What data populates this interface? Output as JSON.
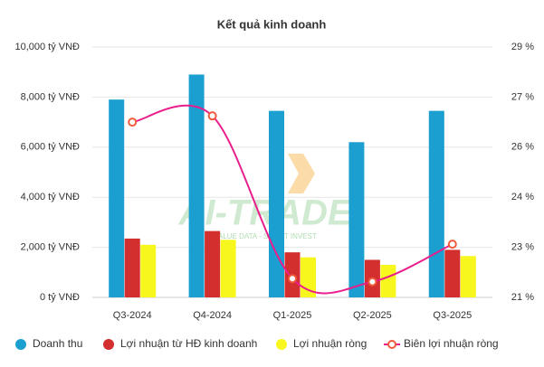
{
  "chart_data": {
    "type": "bar-line",
    "title": "Kết quả kinh doanh",
    "categories": [
      "Q3-2024",
      "Q4-2024",
      "Q1-2025",
      "Q2-2025",
      "Q3-2025"
    ],
    "series": [
      {
        "name": "Doanh thu",
        "color": "#1a9fd0",
        "type": "bar",
        "values": [
          7900,
          8900,
          7450,
          6200,
          7450
        ]
      },
      {
        "name": "Lợi nhuận từ HĐ kinh doanh",
        "color": "#d32f2f",
        "type": "bar",
        "values": [
          2350,
          2650,
          1800,
          1500,
          1900
        ]
      },
      {
        "name": "Lợi nhuận ròng",
        "color": "#f7f71e",
        "type": "bar",
        "values": [
          2100,
          2300,
          1600,
          1300,
          1650
        ]
      },
      {
        "name": "Biên lợi nhuận ròng",
        "color": "#e91e8c",
        "marker_color": "#ef5a3c",
        "type": "line",
        "axis": "y2",
        "values": [
          26.6,
          26.8,
          21.6,
          21.5,
          22.7
        ]
      }
    ],
    "ylim": [
      0,
      10000
    ],
    "yticks": [
      {
        "value": 0,
        "label": "0 tỷ VNĐ"
      },
      {
        "value": 2000,
        "label": "2,000 tỷ VNĐ"
      },
      {
        "value": 4000,
        "label": "4,000 tỷ VNĐ"
      },
      {
        "value": 6000,
        "label": "6,000 tỷ VNĐ"
      },
      {
        "value": 8000,
        "label": "8,000 tỷ VNĐ"
      },
      {
        "value": 10000,
        "label": "10,000 tỷ VNĐ"
      }
    ],
    "y2lim": [
      21,
      29
    ],
    "y2ticks": [
      {
        "value": 21,
        "label": "21 %"
      },
      {
        "value": 22.6,
        "label": "23 %"
      },
      {
        "value": 24.2,
        "label": "24 %"
      },
      {
        "value": 25.8,
        "label": "26 %"
      },
      {
        "value": 27.4,
        "label": "27 %"
      },
      {
        "value": 29,
        "label": "29 %"
      }
    ],
    "grid": true
  },
  "watermark": {
    "title": "AI-TRADE",
    "subtitle": "VALUE DATA - SMART INVEST"
  }
}
